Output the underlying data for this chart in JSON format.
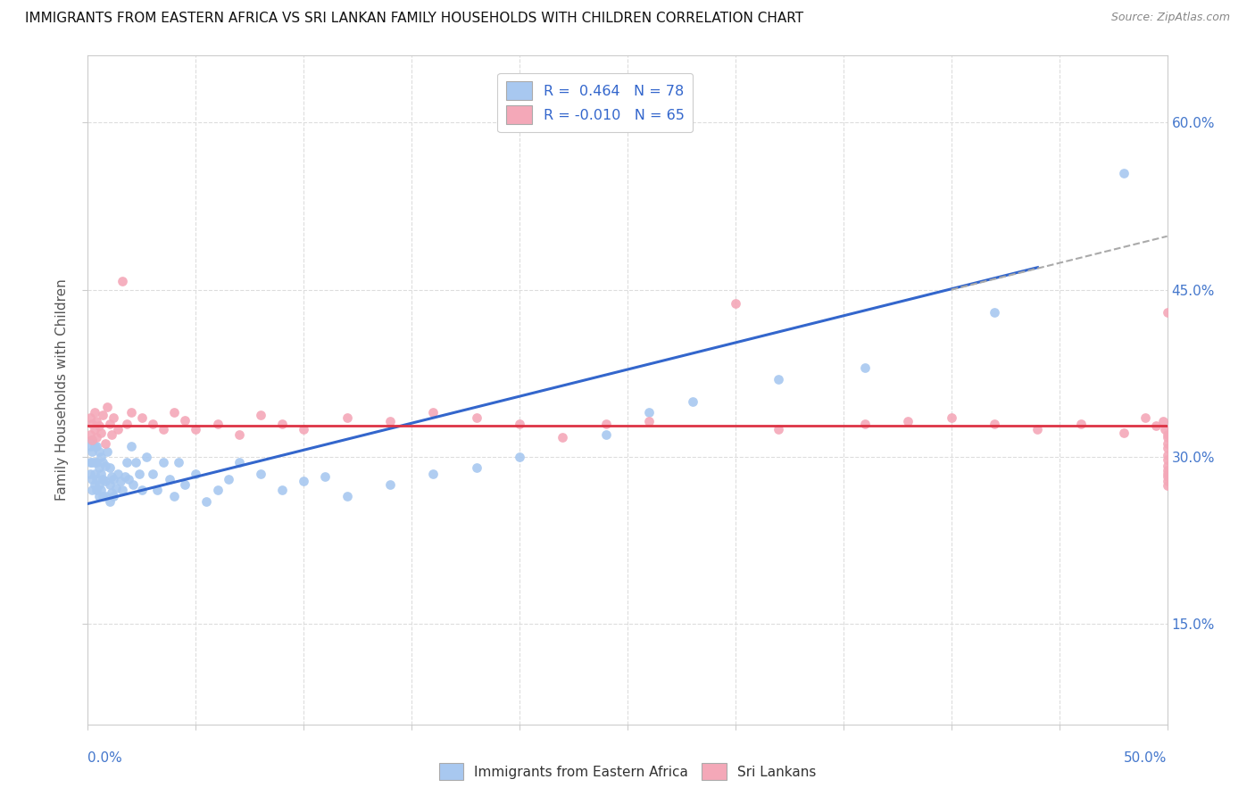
{
  "title": "IMMIGRANTS FROM EASTERN AFRICA VS SRI LANKAN FAMILY HOUSEHOLDS WITH CHILDREN CORRELATION CHART",
  "source": "Source: ZipAtlas.com",
  "ylabel_ticks": [
    0.15,
    0.3,
    0.45,
    0.6
  ],
  "ylabel_tick_labels": [
    "15.0%",
    "30.0%",
    "45.0%",
    "60.0%"
  ],
  "xlim": [
    0.0,
    0.5
  ],
  "ylim": [
    0.06,
    0.66
  ],
  "blue_R": 0.464,
  "blue_N": 78,
  "pink_R": -0.01,
  "pink_N": 65,
  "blue_color": "#A8C8F0",
  "pink_color": "#F4A8B8",
  "blue_line_color": "#3366CC",
  "pink_line_color": "#DD3344",
  "gray_dash_color": "#AAAAAA",
  "background_color": "#FFFFFF",
  "blue_scatter_x": [
    0.001,
    0.001,
    0.001,
    0.002,
    0.002,
    0.002,
    0.002,
    0.002,
    0.003,
    0.003,
    0.003,
    0.003,
    0.004,
    0.004,
    0.004,
    0.004,
    0.005,
    0.005,
    0.005,
    0.005,
    0.006,
    0.006,
    0.006,
    0.007,
    0.007,
    0.007,
    0.008,
    0.008,
    0.008,
    0.009,
    0.01,
    0.01,
    0.01,
    0.011,
    0.011,
    0.012,
    0.012,
    0.013,
    0.014,
    0.015,
    0.016,
    0.017,
    0.018,
    0.019,
    0.02,
    0.021,
    0.022,
    0.024,
    0.025,
    0.027,
    0.03,
    0.032,
    0.035,
    0.038,
    0.04,
    0.042,
    0.045,
    0.05,
    0.055,
    0.06,
    0.065,
    0.07,
    0.08,
    0.09,
    0.1,
    0.11,
    0.12,
    0.14,
    0.16,
    0.18,
    0.2,
    0.24,
    0.26,
    0.28,
    0.32,
    0.36,
    0.42,
    0.48
  ],
  "blue_scatter_y": [
    0.285,
    0.295,
    0.31,
    0.27,
    0.28,
    0.295,
    0.305,
    0.315,
    0.275,
    0.285,
    0.295,
    0.31,
    0.27,
    0.28,
    0.295,
    0.31,
    0.265,
    0.275,
    0.29,
    0.305,
    0.27,
    0.285,
    0.3,
    0.265,
    0.28,
    0.295,
    0.265,
    0.278,
    0.292,
    0.305,
    0.26,
    0.275,
    0.29,
    0.268,
    0.282,
    0.265,
    0.28,
    0.272,
    0.285,
    0.278,
    0.27,
    0.282,
    0.295,
    0.28,
    0.31,
    0.275,
    0.295,
    0.285,
    0.27,
    0.3,
    0.285,
    0.27,
    0.295,
    0.28,
    0.265,
    0.295,
    0.275,
    0.285,
    0.26,
    0.27,
    0.28,
    0.295,
    0.285,
    0.27,
    0.278,
    0.282,
    0.265,
    0.275,
    0.285,
    0.29,
    0.3,
    0.32,
    0.34,
    0.35,
    0.37,
    0.38,
    0.43,
    0.555
  ],
  "pink_scatter_x": [
    0.001,
    0.001,
    0.002,
    0.002,
    0.003,
    0.003,
    0.004,
    0.004,
    0.005,
    0.006,
    0.007,
    0.008,
    0.009,
    0.01,
    0.011,
    0.012,
    0.014,
    0.016,
    0.018,
    0.02,
    0.025,
    0.03,
    0.035,
    0.04,
    0.045,
    0.05,
    0.06,
    0.07,
    0.08,
    0.09,
    0.1,
    0.12,
    0.14,
    0.16,
    0.18,
    0.2,
    0.22,
    0.24,
    0.26,
    0.3,
    0.32,
    0.36,
    0.38,
    0.4,
    0.42,
    0.44,
    0.46,
    0.48,
    0.49,
    0.495,
    0.498,
    0.499,
    0.5,
    0.5,
    0.5,
    0.5,
    0.5,
    0.5,
    0.5,
    0.5,
    0.5,
    0.5,
    0.5,
    0.5,
    0.5
  ],
  "pink_scatter_y": [
    0.335,
    0.32,
    0.33,
    0.315,
    0.325,
    0.34,
    0.318,
    0.332,
    0.328,
    0.322,
    0.338,
    0.312,
    0.345,
    0.33,
    0.32,
    0.335,
    0.325,
    0.458,
    0.33,
    0.34,
    0.335,
    0.33,
    0.325,
    0.34,
    0.333,
    0.325,
    0.33,
    0.32,
    0.338,
    0.33,
    0.325,
    0.335,
    0.332,
    0.34,
    0.335,
    0.33,
    0.318,
    0.33,
    0.332,
    0.438,
    0.325,
    0.33,
    0.332,
    0.335,
    0.33,
    0.325,
    0.33,
    0.322,
    0.335,
    0.328,
    0.332,
    0.325,
    0.43,
    0.32,
    0.318,
    0.312,
    0.308,
    0.302,
    0.298,
    0.292,
    0.288,
    0.285,
    0.282,
    0.278,
    0.274
  ],
  "blue_line_x": [
    0.0,
    0.44
  ],
  "blue_line_y": [
    0.258,
    0.47
  ],
  "gray_line_x": [
    0.4,
    0.5
  ],
  "gray_line_y": [
    0.45,
    0.498
  ],
  "pink_line_x": [
    0.0,
    0.5
  ],
  "pink_line_y": [
    0.328,
    0.328
  ]
}
